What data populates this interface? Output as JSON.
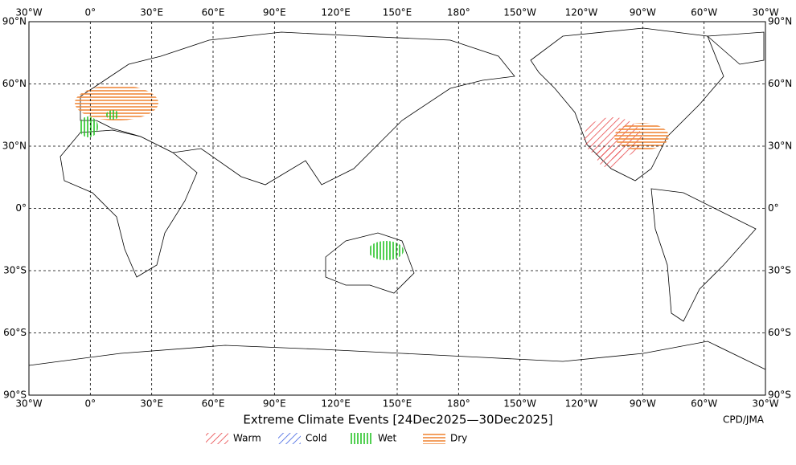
{
  "map": {
    "title": "Extreme Climate Events [24Dec2025—30Dec2025]",
    "credit": "CPD/JMA",
    "lon_labels": [
      "30°W",
      "0°",
      "30°E",
      "60°E",
      "90°E",
      "120°E",
      "150°E",
      "180°",
      "150°W",
      "120°W",
      "90°W",
      "60°W",
      "30°W"
    ],
    "lat_labels": [
      "90°N",
      "60°N",
      "30°N",
      "0°",
      "30°S",
      "60°S",
      "90°S"
    ],
    "legend": [
      {
        "label": "Warm",
        "color": "#e8474a"
      },
      {
        "label": "Cold",
        "color": "#3b5fe0"
      },
      {
        "label": "Wet",
        "color": "#27c427"
      },
      {
        "label": "Dry",
        "color": "#f0893a"
      }
    ]
  }
}
